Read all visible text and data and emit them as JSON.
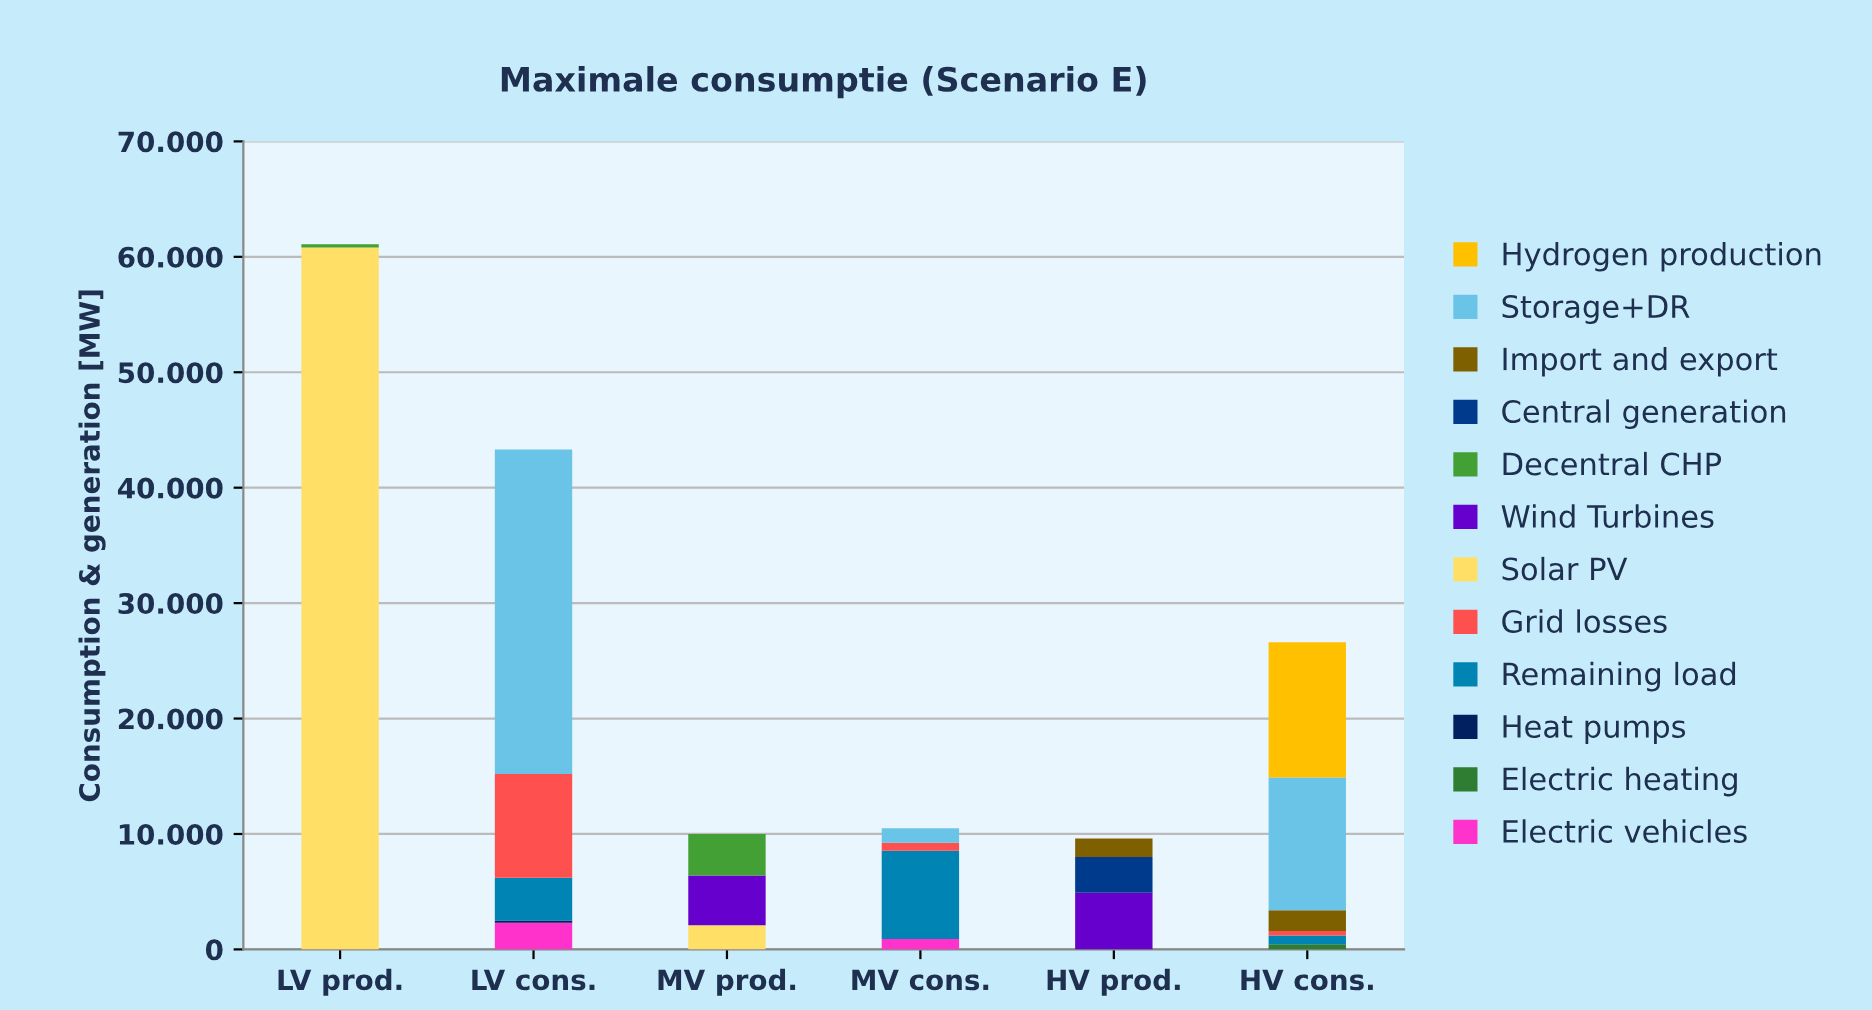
{
  "chart_data": {
    "type": "bar",
    "stacked": true,
    "title": "Maximale consumptie (Scenario E)",
    "ylabel": "Consumption & generation [MW]",
    "categories": [
      "LV prod.",
      "LV cons.",
      "MV prod.",
      "MV cons.",
      "HV prod.",
      "HV cons."
    ],
    "ylim": [
      0,
      70000
    ],
    "yticks": [
      {
        "value": 0,
        "label": "0"
      },
      {
        "value": 10000,
        "label": "10.000"
      },
      {
        "value": 20000,
        "label": "20.000"
      },
      {
        "value": 30000,
        "label": "30.000"
      },
      {
        "value": 40000,
        "label": "40.000"
      },
      {
        "value": 50000,
        "label": "50.000"
      },
      {
        "value": 60000,
        "label": "60.000"
      },
      {
        "value": 70000,
        "label": "70.000"
      }
    ],
    "grid": "y",
    "legend": "right",
    "series": [
      {
        "name": "Electric vehicles",
        "color": "#ff33cc",
        "values": [
          0,
          2300,
          0,
          900,
          0,
          0
        ]
      },
      {
        "name": "Electric heating",
        "color": "#2e7d32",
        "values": [
          0,
          0,
          0,
          0,
          0,
          450
        ]
      },
      {
        "name": "Heat pumps",
        "color": "#002060",
        "values": [
          0,
          200,
          0,
          0,
          0,
          0
        ]
      },
      {
        "name": "Remaining load",
        "color": "#0084b4",
        "values": [
          0,
          3700,
          0,
          7650,
          0,
          750
        ]
      },
      {
        "name": "Grid losses",
        "color": "#ff5050",
        "values": [
          0,
          9000,
          0,
          700,
          0,
          400
        ]
      },
      {
        "name": "Solar PV",
        "color": "#ffdf66",
        "values": [
          60800,
          0,
          2100,
          0,
          0,
          0
        ]
      },
      {
        "name": "Wind Turbines",
        "color": "#6600cc",
        "values": [
          0,
          0,
          4300,
          0,
          4900,
          0
        ]
      },
      {
        "name": "Decentral CHP",
        "color": "#43a035",
        "values": [
          300,
          0,
          3600,
          0,
          0,
          0
        ]
      },
      {
        "name": "Central generation",
        "color": "#003a8c",
        "values": [
          0,
          0,
          0,
          0,
          3100,
          0
        ]
      },
      {
        "name": "Import and export",
        "color": "#7f6000",
        "values": [
          0,
          0,
          0,
          0,
          1600,
          1800
        ]
      },
      {
        "name": "Storage+DR",
        "color": "#69c4e8",
        "values": [
          0,
          28100,
          0,
          1250,
          0,
          11500
        ]
      },
      {
        "name": "Hydrogen production",
        "color": "#ffc000",
        "values": [
          0,
          0,
          0,
          0,
          0,
          11700
        ]
      }
    ]
  }
}
